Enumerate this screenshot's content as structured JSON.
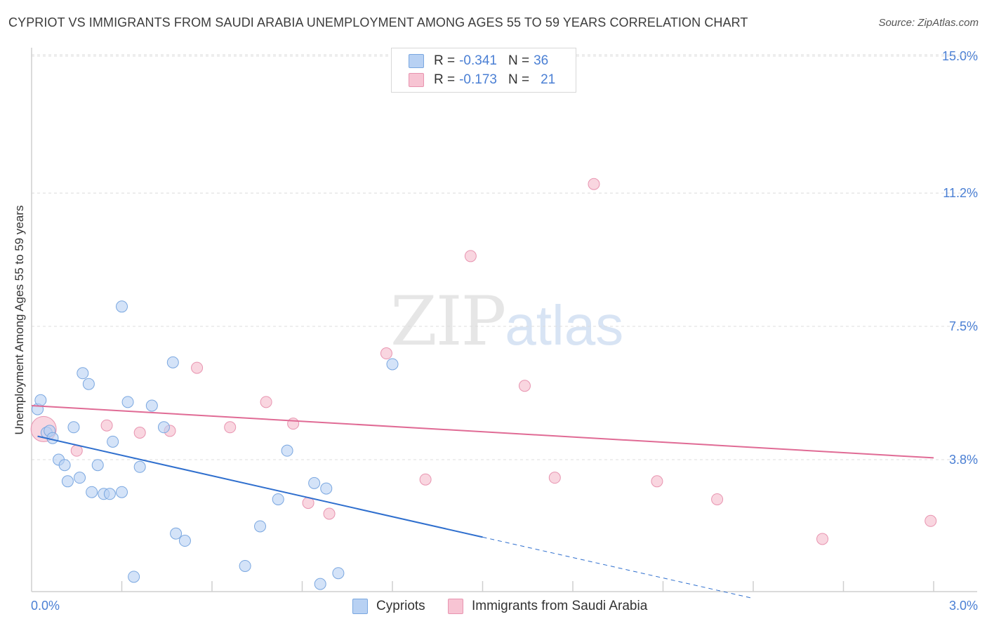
{
  "title": "CYPRIOT VS IMMIGRANTS FROM SAUDI ARABIA UNEMPLOYMENT AMONG AGES 55 TO 59 YEARS CORRELATION CHART",
  "source": "Source: ZipAtlas.com",
  "watermark": {
    "zip": "ZIP",
    "atlas": "atlas"
  },
  "legend": {
    "rows": [
      {
        "r_label": "R =",
        "r_value": "-0.341",
        "n_label": "N =",
        "n_value": "36"
      },
      {
        "r_label": "R =",
        "r_value": "-0.173",
        "n_label": "N =",
        "n_value": "21"
      }
    ]
  },
  "bottom_legend": {
    "series1": "Cypriots",
    "series2": "Immigrants from Saudi Arabia"
  },
  "colors": {
    "blue_fill": "#b8d1f3",
    "blue_stroke": "#7aa7e0",
    "blue_line": "#2f6fce",
    "pink_fill": "#f7c4d3",
    "pink_stroke": "#e894b0",
    "pink_line": "#e06b95",
    "axis_label": "#4a7fd4",
    "grid": "#dcdcdc"
  },
  "chart_data": {
    "type": "scatter",
    "title": "CYPRIOT VS IMMIGRANTS FROM SAUDI ARABIA UNEMPLOYMENT AMONG AGES 55 TO 59 YEARS CORRELATION CHART",
    "xlabel": "",
    "ylabel": "Unemployment Among Ages 55 to 59 years",
    "xlim": [
      0,
      3.0
    ],
    "ylim": [
      0,
      15.5
    ],
    "x_tick_labels": [
      "0.0%",
      "3.0%"
    ],
    "y_ticks": [
      3.8,
      7.5,
      11.2,
      15.0
    ],
    "y_tick_labels": [
      "3.8%",
      "7.5%",
      "11.2%",
      "15.0%"
    ],
    "series": [
      {
        "name": "Cypriots",
        "r": -0.341,
        "n": 36,
        "points": [
          [
            0.02,
            5.2
          ],
          [
            0.03,
            5.45
          ],
          [
            0.05,
            4.55
          ],
          [
            0.06,
            4.6
          ],
          [
            0.07,
            4.4
          ],
          [
            0.09,
            3.8
          ],
          [
            0.11,
            3.65
          ],
          [
            0.12,
            3.2
          ],
          [
            0.14,
            4.7
          ],
          [
            0.16,
            3.3
          ],
          [
            0.17,
            6.2
          ],
          [
            0.19,
            5.9
          ],
          [
            0.2,
            2.9
          ],
          [
            0.22,
            3.65
          ],
          [
            0.24,
            2.85
          ],
          [
            0.26,
            2.85
          ],
          [
            0.27,
            4.3
          ],
          [
            0.3,
            2.9
          ],
          [
            0.3,
            8.05
          ],
          [
            0.32,
            5.4
          ],
          [
            0.34,
            0.55
          ],
          [
            0.36,
            3.6
          ],
          [
            0.4,
            5.3
          ],
          [
            0.44,
            4.7
          ],
          [
            0.47,
            6.5
          ],
          [
            0.48,
            1.75
          ],
          [
            0.51,
            1.55
          ],
          [
            0.71,
            0.85
          ],
          [
            0.76,
            1.95
          ],
          [
            0.82,
            2.7
          ],
          [
            0.85,
            4.05
          ],
          [
            0.94,
            3.15
          ],
          [
            0.96,
            0.35
          ],
          [
            0.98,
            3.0
          ],
          [
            1.02,
            0.65
          ],
          [
            1.2,
            6.45
          ]
        ],
        "trend": {
          "x0": 0.02,
          "y0": 4.45,
          "x1": 1.5,
          "y1": 1.65,
          "dash_to_x": 2.4,
          "dash_to_y": -0.05
        }
      },
      {
        "name": "Immigrants from Saudi Arabia",
        "r": -0.173,
        "n": 21,
        "points": [
          [
            0.04,
            4.65
          ],
          [
            0.15,
            4.05
          ],
          [
            0.25,
            4.75
          ],
          [
            0.36,
            4.55
          ],
          [
            0.46,
            4.6
          ],
          [
            0.55,
            6.35
          ],
          [
            0.66,
            4.7
          ],
          [
            0.78,
            5.4
          ],
          [
            0.87,
            4.8
          ],
          [
            0.92,
            2.6
          ],
          [
            0.99,
            2.3
          ],
          [
            1.18,
            6.75
          ],
          [
            1.31,
            3.25
          ],
          [
            1.46,
            9.45
          ],
          [
            1.64,
            5.85
          ],
          [
            1.74,
            3.3
          ],
          [
            1.87,
            11.45
          ],
          [
            2.08,
            3.2
          ],
          [
            2.28,
            2.7
          ],
          [
            2.63,
            1.6
          ],
          [
            2.99,
            2.1
          ]
        ],
        "trend": {
          "x0": 0.0,
          "y0": 5.3,
          "x1": 3.0,
          "y1": 3.85
        }
      }
    ]
  }
}
